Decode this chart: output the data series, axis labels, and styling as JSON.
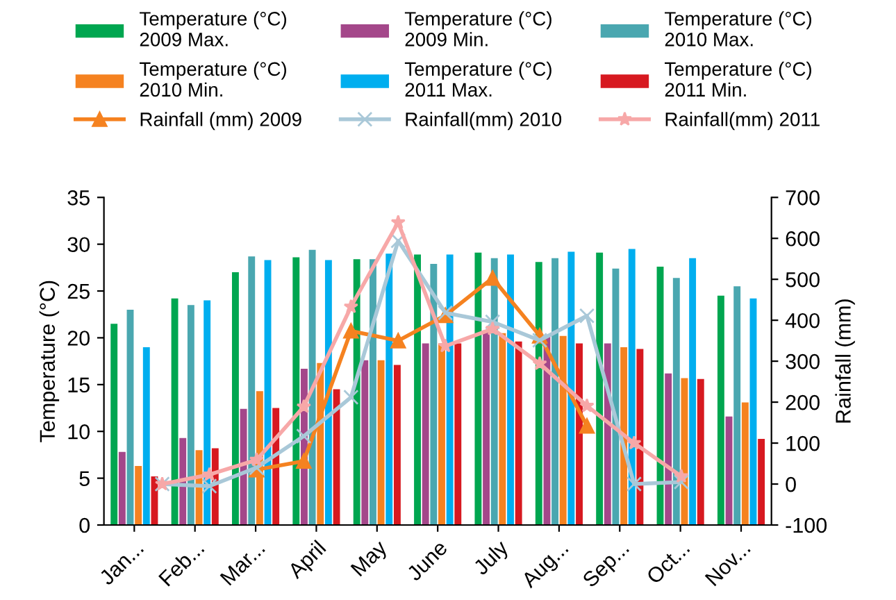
{
  "chart_data": [
    {
      "type": "bar",
      "categories": [
        "Jan...",
        "Feb...",
        "Mar...",
        "April",
        "May",
        "June",
        "July",
        "Aug...",
        "Sep...",
        "Oct...",
        "Nov..."
      ],
      "ylabel": "Temperature (°C)",
      "ylim": [
        0,
        35
      ],
      "yticks": [
        0,
        5,
        10,
        15,
        20,
        25,
        30,
        35
      ],
      "grid": false,
      "legend": "top",
      "series": [
        {
          "name": "Temperature (°C)\n2009 Max.",
          "color": "#00a650",
          "values": [
            21.5,
            24.2,
            27,
            28.6,
            28.4,
            28.9,
            29.1,
            28.1,
            29.1,
            27.6,
            24.5
          ]
        },
        {
          "name": "Temperature (°C)\n2009 Min.",
          "color": "#a4478a",
          "values": [
            7.8,
            9.3,
            12.4,
            16.7,
            17.6,
            19.4,
            20.8,
            20.2,
            19.4,
            16.2,
            11.6
          ]
        },
        {
          "name": "Temperature (°C)\n2010 Max.",
          "color": "#4aa7b0",
          "values": [
            23,
            23.5,
            28.7,
            29.4,
            28.4,
            27.9,
            28.5,
            28.5,
            27.4,
            26.4,
            25.5
          ]
        },
        {
          "name": "Temperature (°C)\n2010 Min.",
          "color": "#f58220",
          "values": [
            6.3,
            8,
            14.3,
            17.3,
            17.6,
            19.4,
            20.5,
            20.2,
            19,
            15.7,
            13.1
          ]
        },
        {
          "name": "Temperature (°C)\n2011 Max.",
          "color": "#00aeef",
          "values": [
            19,
            24,
            28.3,
            28.3,
            29,
            28.9,
            28.9,
            29.2,
            29.5,
            28.5,
            24.2
          ]
        },
        {
          "name": "Temperature (°C)\n2011 Min.",
          "color": "#d71920",
          "values": [
            5.2,
            8.2,
            12.5,
            14.5,
            17.1,
            19.4,
            19.6,
            19.4,
            18.8,
            15.6,
            9.2
          ]
        }
      ]
    },
    {
      "type": "line",
      "categories": [
        null,
        null,
        null,
        null,
        null,
        null,
        null,
        null,
        null,
        null,
        null,
        null
      ],
      "ylabel": "Rainfall (mm)",
      "ylim": [
        -100,
        700
      ],
      "yticks": [
        -100,
        0,
        100,
        200,
        300,
        400,
        500,
        600,
        700
      ],
      "tick_labels": "y",
      "grid": false,
      "legend": "top",
      "series": [
        {
          "name": "Rainfall (mm) 2009",
          "marker": "triangle",
          "color": "#f58220",
          "values": [
            null,
            null,
            35,
            56,
            374,
            350,
            412,
            503,
            362,
            142,
            null,
            null
          ]
        },
        {
          "name": "Rainfall(mm) 2010",
          "marker": "cross",
          "color": "#a9c8d8",
          "values": [
            0,
            -5,
            40,
            117,
            212,
            594,
            418,
            396,
            351,
            411,
            0,
            5
          ]
        },
        {
          "name": "Rainfall(mm) 2011",
          "marker": "star",
          "color": "#f7a8a8",
          "values": [
            0,
            23,
            59,
            189,
            433,
            639,
            337,
            379,
            294,
            191,
            100,
            19
          ]
        }
      ]
    }
  ]
}
